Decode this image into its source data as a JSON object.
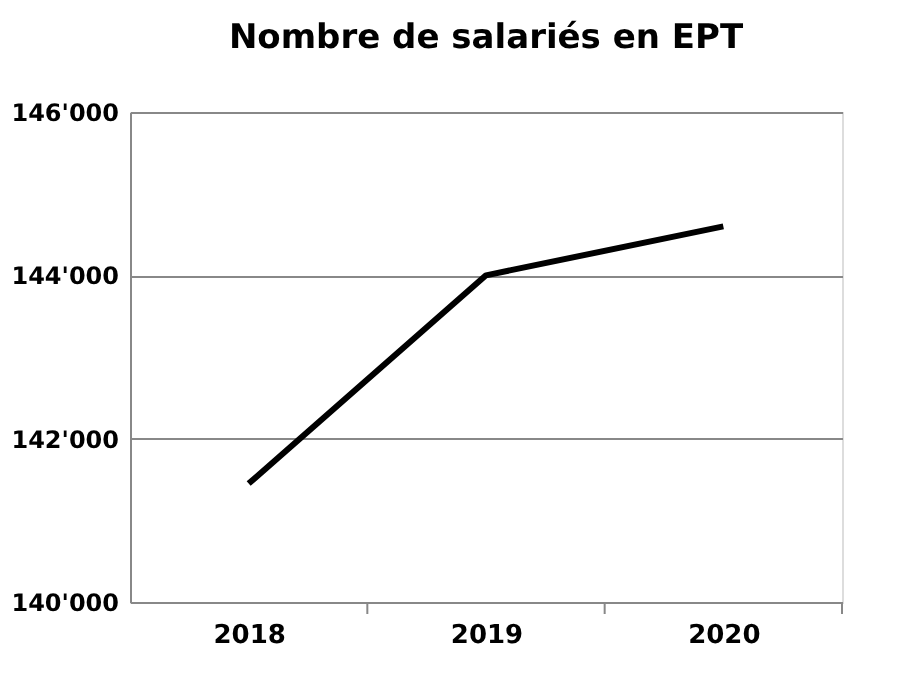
{
  "chart_data": {
    "type": "line",
    "title": "Nombre de salariés en EPT",
    "categories": [
      "2018",
      "2019",
      "2020"
    ],
    "series": [
      {
        "color": "#000000",
        "values": [
          141450,
          144000,
          144600
        ]
      }
    ],
    "ylim": [
      140000,
      146000
    ],
    "yticks": [
      {
        "value": 140000,
        "label": "140'000"
      },
      {
        "value": 142000,
        "label": "142'000"
      },
      {
        "value": 144000,
        "label": "144'000"
      },
      {
        "value": 146000,
        "label": "146'000"
      }
    ],
    "grid": "y",
    "legend": false,
    "marker": "none",
    "line_style": "solid"
  }
}
